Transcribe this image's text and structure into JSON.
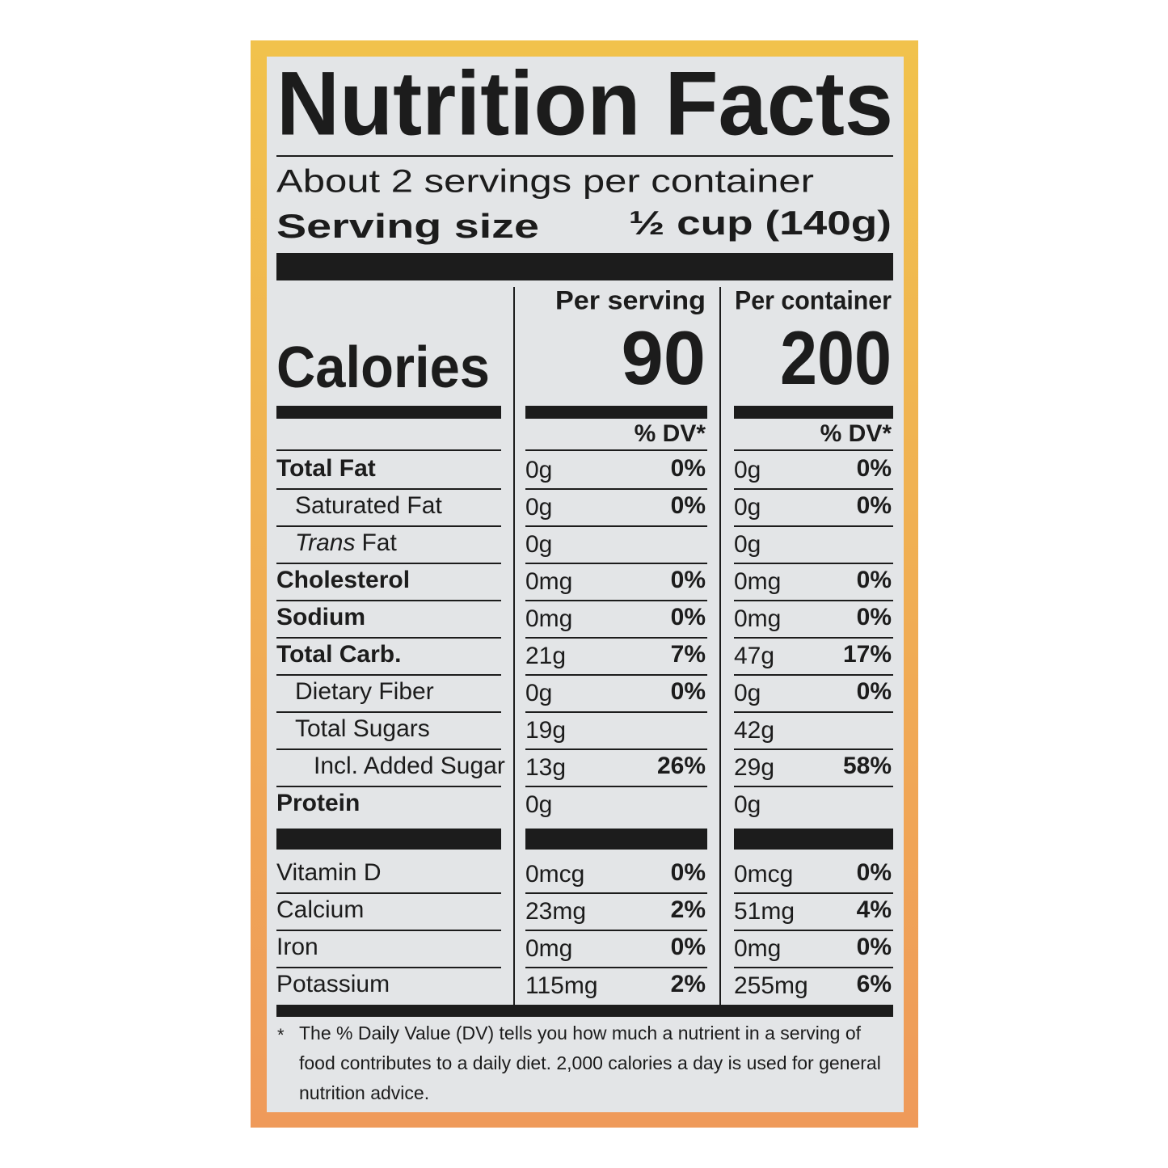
{
  "title": "Nutrition Facts",
  "servings": "About 2 servings per container",
  "serving_size": {
    "label": "Serving size",
    "value": "½ cup (140g)"
  },
  "columns": [
    "Per serving",
    "Per container"
  ],
  "calories": {
    "label": "Calories",
    "values": [
      "90",
      "200"
    ]
  },
  "dv_header": [
    "% DV*",
    "% DV*"
  ],
  "rows": [
    {
      "label": "Total Fat",
      "bold": true,
      "indent": 0,
      "cells": [
        {
          "amount": "0g",
          "dv": "0%"
        },
        {
          "amount": "0g",
          "dv": "0%"
        }
      ]
    },
    {
      "label": "Saturated Fat",
      "bold": false,
      "indent": 1,
      "cells": [
        {
          "amount": "0g",
          "dv": "0%"
        },
        {
          "amount": "0g",
          "dv": "0%"
        }
      ]
    },
    {
      "label_italic": "Trans",
      "label": "Fat",
      "bold": false,
      "indent": 1,
      "cells": [
        {
          "amount": "0g"
        },
        {
          "amount": "0g"
        }
      ]
    },
    {
      "label": "Cholesterol",
      "bold": true,
      "indent": 0,
      "cells": [
        {
          "amount": "0mg",
          "dv": "0%"
        },
        {
          "amount": "0mg",
          "dv": "0%"
        }
      ]
    },
    {
      "label": "Sodium",
      "bold": true,
      "indent": 0,
      "cells": [
        {
          "amount": "0mg",
          "dv": "0%"
        },
        {
          "amount": "0mg",
          "dv": "0%"
        }
      ]
    },
    {
      "label": "Total Carb.",
      "bold": true,
      "indent": 0,
      "cells": [
        {
          "amount": "21g",
          "dv": "7%"
        },
        {
          "amount": "47g",
          "dv": "17%"
        }
      ]
    },
    {
      "label": "Dietary Fiber",
      "bold": false,
      "indent": 1,
      "cells": [
        {
          "amount": "0g",
          "dv": "0%"
        },
        {
          "amount": "0g",
          "dv": "0%"
        }
      ]
    },
    {
      "label": "Total Sugars",
      "bold": false,
      "indent": 1,
      "cells": [
        {
          "amount": "19g"
        },
        {
          "amount": "42g"
        }
      ]
    },
    {
      "label": "Incl. Added Sugar",
      "bold": false,
      "indent": 2,
      "cells": [
        {
          "amount": "13g",
          "dv": "26%"
        },
        {
          "amount": "29g",
          "dv": "58%"
        }
      ]
    },
    {
      "label": "Protein",
      "bold": true,
      "indent": 0,
      "cells": [
        {
          "amount": "0g"
        },
        {
          "amount": "0g"
        }
      ]
    }
  ],
  "vitamins": [
    {
      "label": "Vitamin D",
      "cells": [
        {
          "amount": "0mcg",
          "dv": "0%"
        },
        {
          "amount": "0mcg",
          "dv": "0%"
        }
      ]
    },
    {
      "label": "Calcium",
      "cells": [
        {
          "amount": "23mg",
          "dv": "2%"
        },
        {
          "amount": "51mg",
          "dv": "4%"
        }
      ]
    },
    {
      "label": "Iron",
      "cells": [
        {
          "amount": "0mg",
          "dv": "0%"
        },
        {
          "amount": "0mg",
          "dv": "0%"
        }
      ]
    },
    {
      "label": "Potassium",
      "cells": [
        {
          "amount": "115mg",
          "dv": "2%"
        },
        {
          "amount": "255mg",
          "dv": "6%"
        }
      ]
    }
  ],
  "footnote": {
    "marker": "*",
    "lines": [
      "The % Daily Value (DV) tells you how much a nutrient in a serving of",
      "food contributes to a daily diet. 2,000 calories a day is used for general",
      "nutrition advice."
    ]
  }
}
